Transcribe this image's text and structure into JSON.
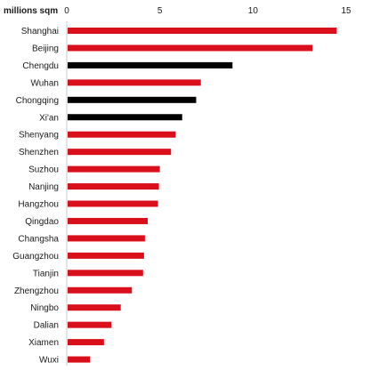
{
  "chart_data": {
    "type": "bar",
    "orientation": "horizontal",
    "unit_label": "millions sqm",
    "categories": [
      "Shanghai",
      "Beijing",
      "Chengdu",
      "Wuhan",
      "Chongqing",
      "Xi'an",
      "Shenyang",
      "Shenzhen",
      "Suzhou",
      "Nanjing",
      "Hangzhou",
      "Qingdao",
      "Changsha",
      "Guangzhou",
      "Tianjin",
      "Zhengzhou",
      "Ningbo",
      "Dalian",
      "Xiamen",
      "Wuxi"
    ],
    "values": [
      14.5,
      13.2,
      8.9,
      7.2,
      6.95,
      6.2,
      5.85,
      5.6,
      5.0,
      4.95,
      4.9,
      4.35,
      4.2,
      4.15,
      4.1,
      3.5,
      2.9,
      2.4,
      2.0,
      1.25
    ],
    "bar_colors": [
      "#d9101b",
      "#d9101b",
      "#000000",
      "#d9101b",
      "#000000",
      "#000000",
      "#d9101b",
      "#d9101b",
      "#d9101b",
      "#d9101b",
      "#d9101b",
      "#d9101b",
      "#d9101b",
      "#d9101b",
      "#d9101b",
      "#d9101b",
      "#d9101b",
      "#d9101b",
      "#d9101b",
      "#d9101b"
    ],
    "xlim": [
      0,
      15
    ],
    "xticks": [
      0,
      5,
      10,
      15
    ],
    "grid": false,
    "legend": "none"
  }
}
